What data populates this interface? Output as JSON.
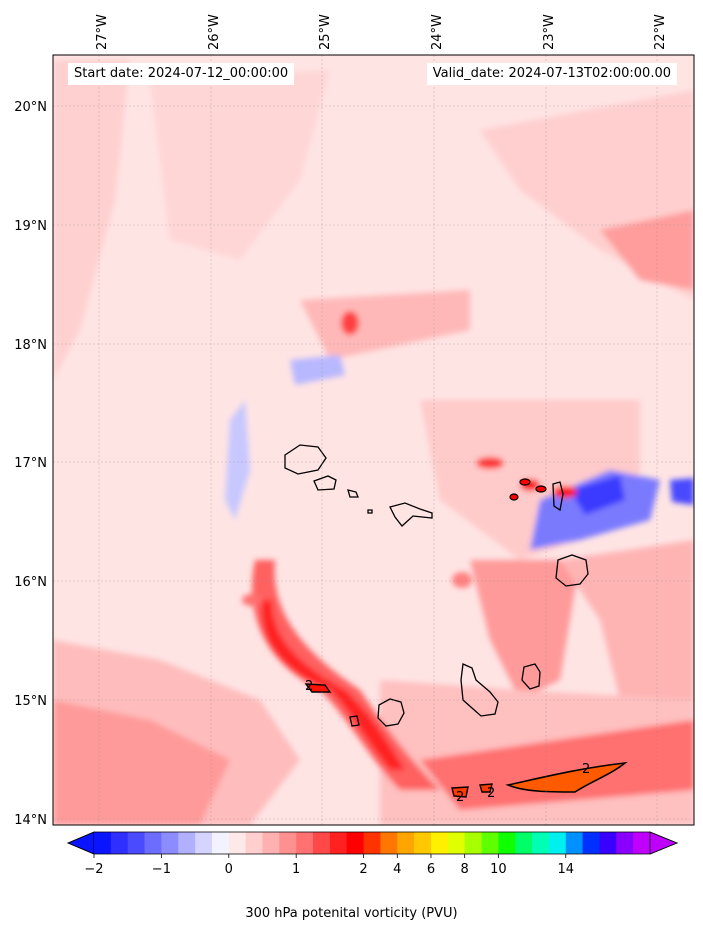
{
  "header": {
    "start_date": "Start date: 2024-07-12_00:00:00",
    "valid_date": "Valid_date: 2024-07-13T02:00:00.00"
  },
  "axes": {
    "lon_labels": [
      "27°W",
      "26°W",
      "25°W",
      "24°W",
      "23°W",
      "22°W"
    ],
    "lat_labels": [
      "20°N",
      "19°N",
      "18°N",
      "17°N",
      "16°N",
      "15°N",
      "14°N"
    ]
  },
  "colorbar": {
    "title": "300 hPa potenital vorticity (PVU)",
    "tick_labels": [
      "−2",
      "−1",
      "0",
      "1",
      "2",
      "4",
      "6",
      "8",
      "10",
      "14"
    ],
    "colors": [
      "#0a14ff",
      "#2f2fff",
      "#4a4aff",
      "#6c6cff",
      "#8c8cff",
      "#b0b0ff",
      "#d4d4ff",
      "#f3f3ff",
      "#ffe8e8",
      "#ffcfcf",
      "#ffb0b0",
      "#ff9090",
      "#ff7070",
      "#ff4848",
      "#ff2020",
      "#ff0000",
      "#ff3300",
      "#ff7700",
      "#ffa500",
      "#ffc800",
      "#fff000",
      "#e0ff00",
      "#a8ff00",
      "#60ff00",
      "#10ff00",
      "#00ff66",
      "#00ffb4",
      "#00f0f0",
      "#0090ff",
      "#0030ff",
      "#3a00ff",
      "#8a00ff",
      "#c000ff"
    ]
  },
  "field": {
    "background": "#ffe4e4",
    "contour_label": "2"
  }
}
